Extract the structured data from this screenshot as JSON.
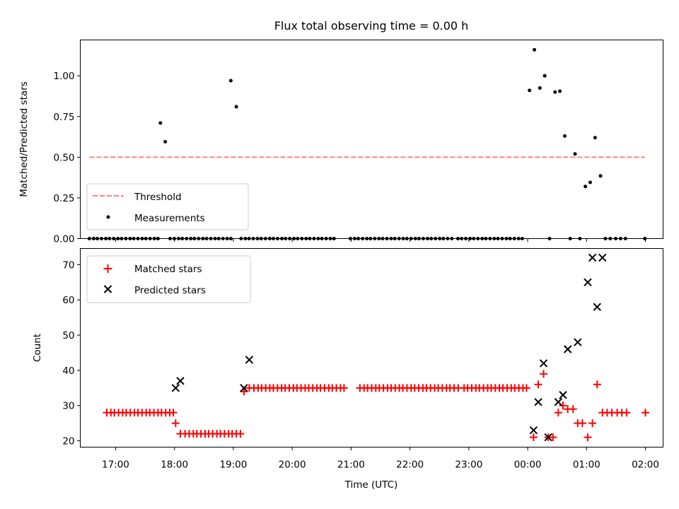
{
  "chart_data": [
    {
      "type": "scatter",
      "title": "Flux total observing time = 0.00 h",
      "xlabel": "",
      "ylabel": "Matched/Predicted stars",
      "xlim": [
        -0.15,
        9.45
      ],
      "ylim": [
        0,
        1.22
      ],
      "yticks": [
        0.0,
        0.25,
        0.5,
        0.75,
        1.0
      ],
      "ytick_labels": [
        "0.00",
        "0.25",
        "0.50",
        "0.75",
        "1.00"
      ],
      "grid": false,
      "legend_position": "lower-left",
      "threshold": {
        "name": "Threshold",
        "y": 0.5,
        "x": [
          0.0,
          9.15
        ],
        "color": "#ff8080",
        "style": "dashed"
      },
      "series": [
        {
          "name": "Measurements",
          "marker": "dot",
          "color": "#000000",
          "points": [
            [
              0.0,
              0
            ],
            [
              0.07,
              0
            ],
            [
              0.13,
              0
            ],
            [
              0.2,
              0
            ],
            [
              0.27,
              0
            ],
            [
              0.33,
              0
            ],
            [
              0.4,
              0
            ],
            [
              0.47,
              0
            ],
            [
              0.53,
              0
            ],
            [
              0.6,
              0
            ],
            [
              0.67,
              0
            ],
            [
              0.73,
              0
            ],
            [
              0.8,
              0
            ],
            [
              0.87,
              0
            ],
            [
              0.93,
              0
            ],
            [
              1.0,
              0
            ],
            [
              1.07,
              0
            ],
            [
              1.13,
              0
            ],
            [
              1.17,
              0.71
            ],
            [
              1.25,
              0.595
            ],
            [
              1.33,
              0
            ],
            [
              1.4,
              0
            ],
            [
              1.47,
              0
            ],
            [
              1.53,
              0
            ],
            [
              1.6,
              0
            ],
            [
              1.67,
              0
            ],
            [
              1.73,
              0
            ],
            [
              1.8,
              0
            ],
            [
              1.87,
              0
            ],
            [
              1.93,
              0
            ],
            [
              2.0,
              0
            ],
            [
              2.07,
              0
            ],
            [
              2.13,
              0
            ],
            [
              2.2,
              0
            ],
            [
              2.27,
              0
            ],
            [
              2.33,
              0
            ],
            [
              2.33,
              0.97
            ],
            [
              2.42,
              0.81
            ],
            [
              2.5,
              0
            ],
            [
              2.57,
              0
            ],
            [
              2.63,
              0
            ],
            [
              2.7,
              0
            ],
            [
              2.77,
              0
            ],
            [
              2.83,
              0
            ],
            [
              2.9,
              0
            ],
            [
              2.97,
              0
            ],
            [
              3.03,
              0
            ],
            [
              3.1,
              0
            ],
            [
              3.17,
              0
            ],
            [
              3.23,
              0
            ],
            [
              3.3,
              0
            ],
            [
              3.37,
              0
            ],
            [
              3.43,
              0
            ],
            [
              3.5,
              0
            ],
            [
              3.57,
              0
            ],
            [
              3.63,
              0
            ],
            [
              3.7,
              0
            ],
            [
              3.77,
              0
            ],
            [
              3.83,
              0
            ],
            [
              3.9,
              0
            ],
            [
              3.97,
              0
            ],
            [
              4.03,
              0
            ],
            [
              4.3,
              0
            ],
            [
              4.37,
              0
            ],
            [
              4.43,
              0
            ],
            [
              4.5,
              0
            ],
            [
              4.57,
              0
            ],
            [
              4.63,
              0
            ],
            [
              4.7,
              0
            ],
            [
              4.77,
              0
            ],
            [
              4.83,
              0
            ],
            [
              4.9,
              0
            ],
            [
              4.97,
              0
            ],
            [
              5.03,
              0
            ],
            [
              5.1,
              0
            ],
            [
              5.17,
              0
            ],
            [
              5.23,
              0
            ],
            [
              5.3,
              0
            ],
            [
              5.37,
              0
            ],
            [
              5.43,
              0
            ],
            [
              5.5,
              0
            ],
            [
              5.57,
              0
            ],
            [
              5.63,
              0
            ],
            [
              5.7,
              0
            ],
            [
              5.77,
              0
            ],
            [
              5.83,
              0
            ],
            [
              5.9,
              0
            ],
            [
              5.97,
              0
            ],
            [
              6.07,
              0
            ],
            [
              6.13,
              0
            ],
            [
              6.2,
              0
            ],
            [
              6.27,
              0
            ],
            [
              6.33,
              0
            ],
            [
              6.4,
              0
            ],
            [
              6.47,
              0
            ],
            [
              6.53,
              0
            ],
            [
              6.6,
              0
            ],
            [
              6.67,
              0
            ],
            [
              6.73,
              0
            ],
            [
              6.8,
              0
            ],
            [
              6.87,
              0
            ],
            [
              6.93,
              0
            ],
            [
              7.0,
              0
            ],
            [
              7.07,
              0
            ],
            [
              7.13,
              0
            ],
            [
              7.25,
              0.91
            ],
            [
              7.33,
              1.16
            ],
            [
              7.42,
              0.925
            ],
            [
              7.5,
              1.0
            ],
            [
              7.58,
              0
            ],
            [
              7.67,
              0.9
            ],
            [
              7.75,
              0.905
            ],
            [
              7.83,
              0.63
            ],
            [
              7.92,
              0
            ],
            [
              8.0,
              0.52
            ],
            [
              8.08,
              0
            ],
            [
              8.17,
              0.32
            ],
            [
              8.25,
              0.345
            ],
            [
              8.33,
              0.62
            ],
            [
              8.42,
              0.385
            ],
            [
              8.5,
              0
            ],
            [
              8.58,
              0
            ],
            [
              8.67,
              0
            ],
            [
              8.75,
              0
            ],
            [
              8.83,
              0
            ],
            [
              9.15,
              0
            ]
          ]
        }
      ]
    },
    {
      "type": "scatter",
      "title": "",
      "xlabel": "Time (UTC)",
      "ylabel": "Count",
      "xlim": [
        -0.45,
        9.45
      ],
      "ylim": [
        18.2,
        74.6
      ],
      "yticks": [
        20,
        30,
        40,
        50,
        60,
        70
      ],
      "ytick_labels": [
        "20",
        "30",
        "40",
        "50",
        "60",
        "70"
      ],
      "x_tick_values": [
        0.15,
        1.15,
        2.15,
        3.15,
        4.15,
        5.15,
        6.15,
        7.15,
        8.15,
        9.15
      ],
      "x_tick_labels": [
        "17:00",
        "18:00",
        "19:00",
        "20:00",
        "21:00",
        "22:00",
        "23:00",
        "00:00",
        "01:00",
        "02:00"
      ],
      "grid": false,
      "legend_position": "upper-left",
      "series": [
        {
          "name": "Matched stars",
          "marker": "plus",
          "color": "#ff0000",
          "points": [
            [
              0.0,
              28
            ],
            [
              0.07,
              28
            ],
            [
              0.13,
              28
            ],
            [
              0.2,
              28
            ],
            [
              0.27,
              28
            ],
            [
              0.33,
              28
            ],
            [
              0.4,
              28
            ],
            [
              0.47,
              28
            ],
            [
              0.53,
              28
            ],
            [
              0.6,
              28
            ],
            [
              0.67,
              28
            ],
            [
              0.73,
              28
            ],
            [
              0.8,
              28
            ],
            [
              0.87,
              28
            ],
            [
              0.93,
              28
            ],
            [
              1.0,
              28
            ],
            [
              1.07,
              28
            ],
            [
              1.13,
              28
            ],
            [
              1.17,
              25
            ],
            [
              1.25,
              22
            ],
            [
              1.33,
              22
            ],
            [
              1.4,
              22
            ],
            [
              1.47,
              22
            ],
            [
              1.53,
              22
            ],
            [
              1.6,
              22
            ],
            [
              1.67,
              22
            ],
            [
              1.73,
              22
            ],
            [
              1.8,
              22
            ],
            [
              1.87,
              22
            ],
            [
              1.93,
              22
            ],
            [
              2.0,
              22
            ],
            [
              2.07,
              22
            ],
            [
              2.13,
              22
            ],
            [
              2.2,
              22
            ],
            [
              2.27,
              22
            ],
            [
              2.33,
              34
            ],
            [
              2.42,
              35
            ],
            [
              2.5,
              35
            ],
            [
              2.57,
              35
            ],
            [
              2.63,
              35
            ],
            [
              2.7,
              35
            ],
            [
              2.77,
              35
            ],
            [
              2.83,
              35
            ],
            [
              2.9,
              35
            ],
            [
              2.97,
              35
            ],
            [
              3.03,
              35
            ],
            [
              3.1,
              35
            ],
            [
              3.17,
              35
            ],
            [
              3.23,
              35
            ],
            [
              3.3,
              35
            ],
            [
              3.37,
              35
            ],
            [
              3.43,
              35
            ],
            [
              3.5,
              35
            ],
            [
              3.57,
              35
            ],
            [
              3.63,
              35
            ],
            [
              3.7,
              35
            ],
            [
              3.77,
              35
            ],
            [
              3.83,
              35
            ],
            [
              3.9,
              35
            ],
            [
              3.97,
              35
            ],
            [
              4.03,
              35
            ],
            [
              4.3,
              35
            ],
            [
              4.37,
              35
            ],
            [
              4.43,
              35
            ],
            [
              4.5,
              35
            ],
            [
              4.57,
              35
            ],
            [
              4.63,
              35
            ],
            [
              4.7,
              35
            ],
            [
              4.77,
              35
            ],
            [
              4.83,
              35
            ],
            [
              4.9,
              35
            ],
            [
              4.97,
              35
            ],
            [
              5.03,
              35
            ],
            [
              5.1,
              35
            ],
            [
              5.17,
              35
            ],
            [
              5.23,
              35
            ],
            [
              5.3,
              35
            ],
            [
              5.37,
              35
            ],
            [
              5.43,
              35
            ],
            [
              5.5,
              35
            ],
            [
              5.57,
              35
            ],
            [
              5.63,
              35
            ],
            [
              5.7,
              35
            ],
            [
              5.77,
              35
            ],
            [
              5.83,
              35
            ],
            [
              5.9,
              35
            ],
            [
              5.97,
              35
            ],
            [
              6.07,
              35
            ],
            [
              6.13,
              35
            ],
            [
              6.2,
              35
            ],
            [
              6.27,
              35
            ],
            [
              6.33,
              35
            ],
            [
              6.4,
              35
            ],
            [
              6.47,
              35
            ],
            [
              6.53,
              35
            ],
            [
              6.6,
              35
            ],
            [
              6.67,
              35
            ],
            [
              6.73,
              35
            ],
            [
              6.8,
              35
            ],
            [
              6.87,
              35
            ],
            [
              6.93,
              35
            ],
            [
              7.0,
              35
            ],
            [
              7.07,
              35
            ],
            [
              7.13,
              35
            ],
            [
              7.25,
              21
            ],
            [
              7.33,
              36
            ],
            [
              7.42,
              39
            ],
            [
              7.5,
              21
            ],
            [
              7.58,
              21
            ],
            [
              7.67,
              28
            ],
            [
              7.75,
              30
            ],
            [
              7.83,
              29
            ],
            [
              7.92,
              29
            ],
            [
              8.0,
              25
            ],
            [
              8.08,
              25
            ],
            [
              8.17,
              21
            ],
            [
              8.25,
              25
            ],
            [
              8.33,
              36
            ],
            [
              8.42,
              28
            ],
            [
              8.5,
              28
            ],
            [
              8.58,
              28
            ],
            [
              8.67,
              28
            ],
            [
              8.75,
              28
            ],
            [
              8.83,
              28
            ],
            [
              9.15,
              28
            ]
          ]
        },
        {
          "name": "Predicted stars",
          "marker": "x",
          "color": "#000000",
          "points": [
            [
              1.17,
              35
            ],
            [
              1.25,
              37
            ],
            [
              2.33,
              35
            ],
            [
              2.42,
              43
            ],
            [
              7.25,
              23
            ],
            [
              7.33,
              31
            ],
            [
              7.42,
              42
            ],
            [
              7.5,
              21
            ],
            [
              7.67,
              31
            ],
            [
              7.75,
              33
            ],
            [
              7.83,
              46
            ],
            [
              8.0,
              48
            ],
            [
              8.17,
              65
            ],
            [
              8.25,
              72
            ],
            [
              8.33,
              58
            ],
            [
              8.42,
              72
            ]
          ]
        }
      ]
    }
  ]
}
